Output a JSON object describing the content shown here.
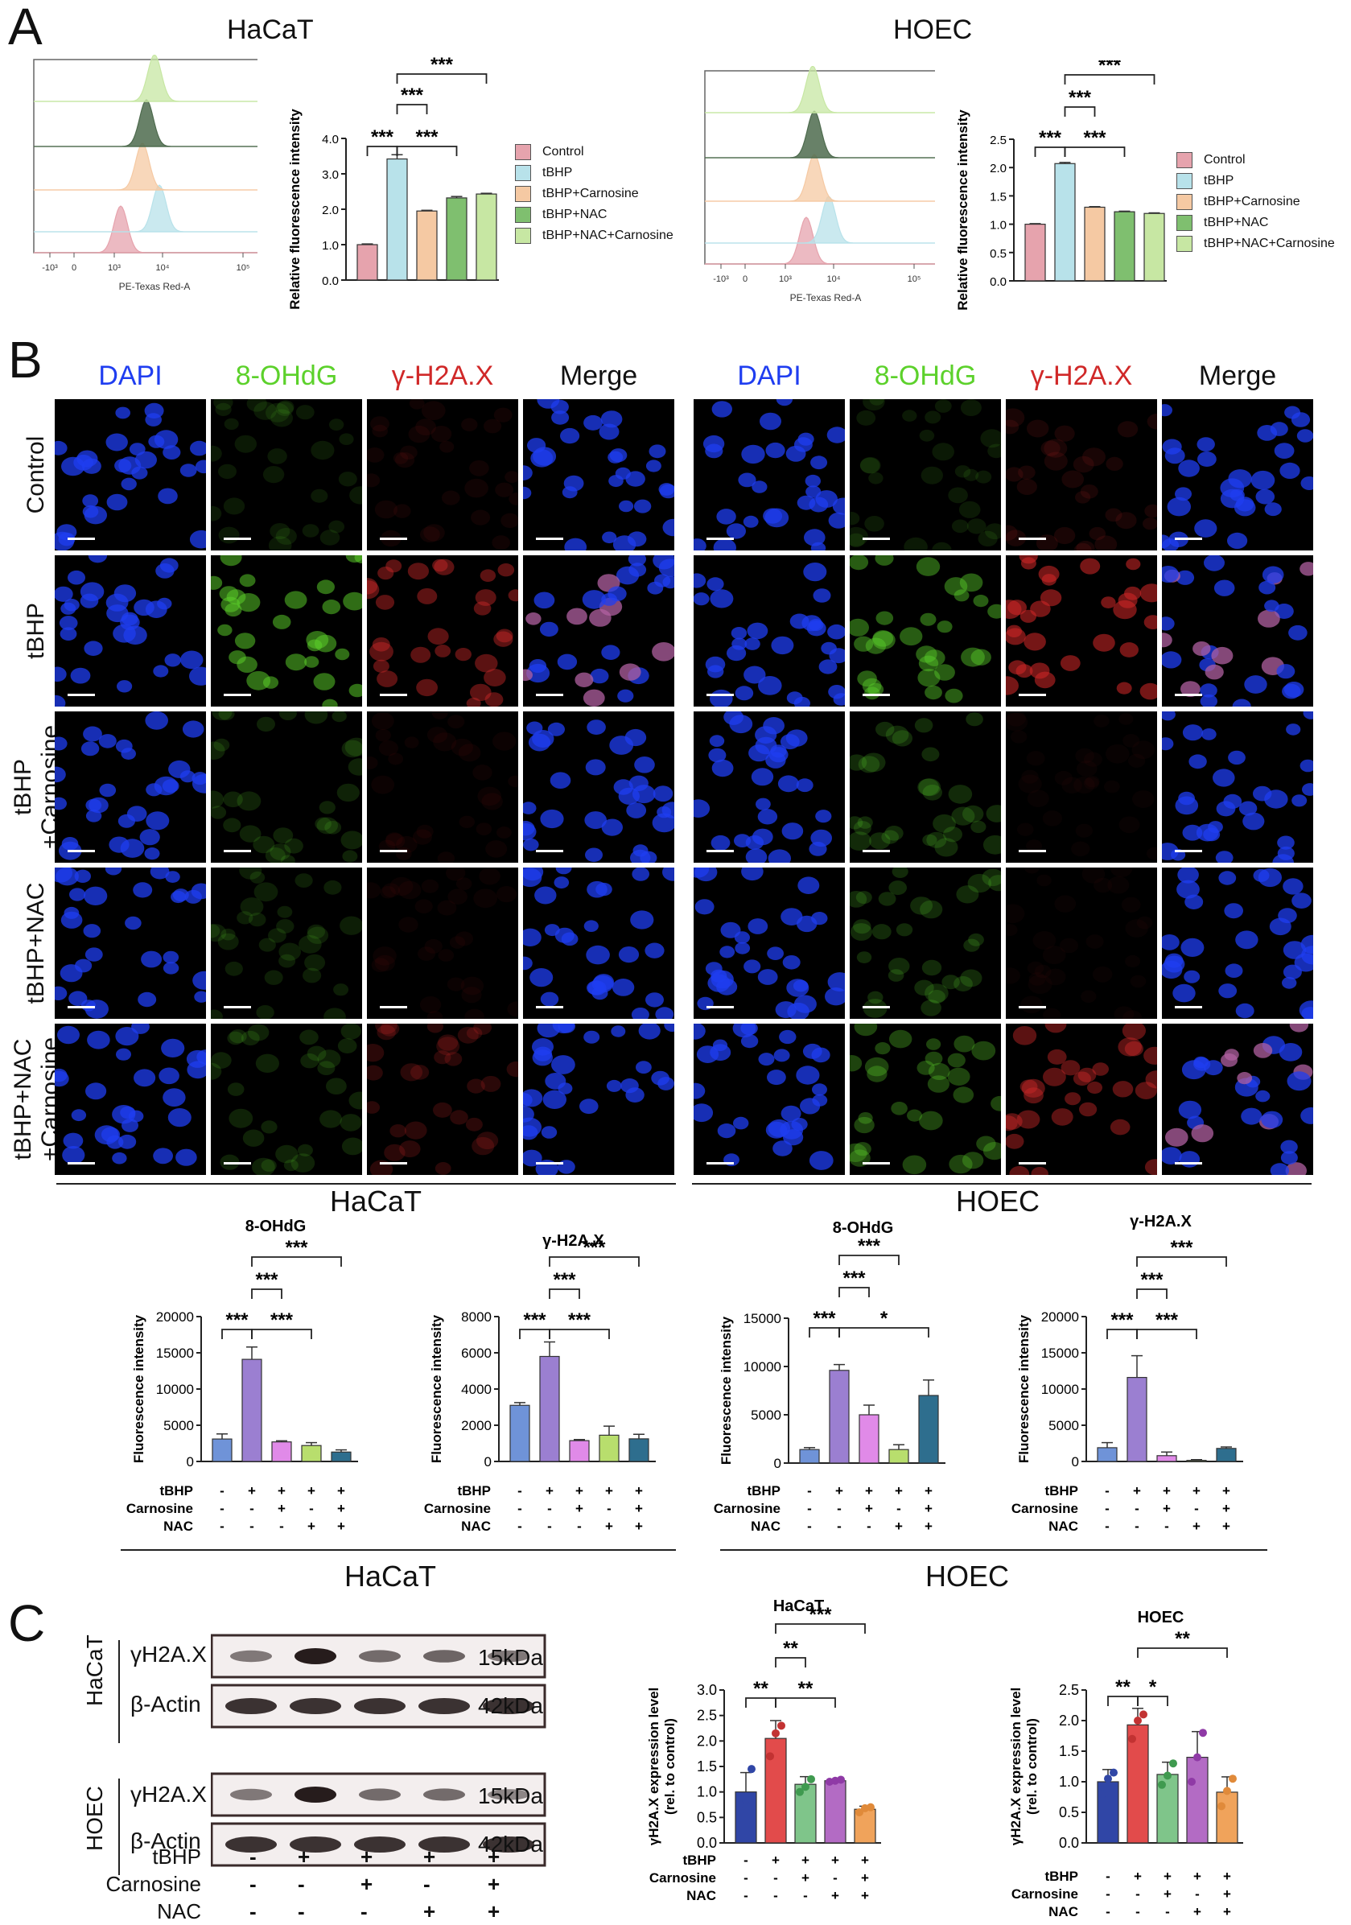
{
  "panels": {
    "a": "A",
    "b": "B",
    "c": "C"
  },
  "colors": {
    "control": "#e6a3ad",
    "tbhp": "#b8e2ea",
    "tbhp_carn": "#f5c9a3",
    "tbhp_nac": "#7fbf6f",
    "tbhp_nac_carn": "#c7e7a3",
    "b_control": "#6f93d8",
    "b_tbhp": "#9b7fd1",
    "b_carn": "#e08ae8",
    "b_nac": "#b8de6d",
    "b_combo": "#2e6e8e",
    "c_control": "#3046a6",
    "c_tbhp": "#e24b4b",
    "c_carn": "#7fc58a",
    "c_nac": "#b36bc4",
    "c_combo": "#f0a35b",
    "dapi": "#1f3df0",
    "ohdg": "#5cd12b",
    "h2ax": "#d02828"
  },
  "panelA": {
    "hacat_title": "HaCaT",
    "hoec_title": "HOEC",
    "flow_xlabel": "PE-Texas Red-A",
    "flow_ticks": [
      "-10³",
      "0",
      "10³",
      "10⁴",
      "10⁵"
    ],
    "legend": [
      "Control",
      "tBHP",
      "tBHP+Carnosine",
      "tBHP+NAC",
      "tBHP+NAC+Carnosine"
    ],
    "sig": "***"
  },
  "panelB": {
    "channels": [
      "DAPI",
      "8-OHdG",
      "γ-H2A.X",
      "Merge"
    ],
    "rows": [
      "Control",
      "tBHP",
      "tBHP\n+Carnosine",
      "tBHP+NAC",
      "tBHP+NAC\n+Carnosine"
    ],
    "hacat_label": "HaCaT",
    "hoec_label": "HOEC",
    "ylabel": "Fluorescence intensity",
    "tbhp_label": "tBHP",
    "carn_label": "Carnosine",
    "nac_label": "NAC",
    "plus": "+",
    "minus": "-"
  },
  "panelC": {
    "blot_labels": {
      "h2ax": "γH2A.X",
      "actin": "β-Actin",
      "hacat": "HaCaT",
      "hoec": "HOEC",
      "kda15": "15kDa",
      "kda42": "42kDa"
    },
    "ylabel": "γH2A.X expression level",
    "ylabel2": "(rel. to control)",
    "tbhp_label": "tBHP",
    "carn_label": "Carnosine",
    "nac_label": "NAC",
    "treat_signs": {
      "tbhp": [
        "-",
        "+",
        "+",
        "+",
        "+"
      ],
      "carnosine": [
        "-",
        "-",
        "+",
        "-",
        "+"
      ],
      "nac": [
        "-",
        "-",
        "-",
        "+",
        "+"
      ]
    }
  },
  "chart_data": [
    {
      "type": "bar",
      "title": "HaCaT",
      "xlabel": "",
      "ylabel": "Relative fluorescence intensity",
      "categories": [
        "Control",
        "tBHP",
        "tBHP+Carnosine",
        "tBHP+NAC",
        "tBHP+NAC+Carnosine"
      ],
      "values": [
        1.0,
        3.42,
        1.95,
        2.32,
        2.43
      ],
      "errors": [
        0.02,
        0.12,
        0.02,
        0.04,
        0.02
      ],
      "ylim": [
        0,
        4.0
      ],
      "yticks": [
        "0.0",
        "1.0",
        "2.0",
        "3.0",
        "4.0"
      ],
      "significance": [
        "***",
        "***",
        "***",
        "***"
      ]
    },
    {
      "type": "bar",
      "title": "HOEC",
      "xlabel": "",
      "ylabel": "Relative fluorescence intensity",
      "categories": [
        "Control",
        "tBHP",
        "tBHP+Carnosine",
        "tBHP+NAC",
        "tBHP+NAC+Carnosine"
      ],
      "values": [
        1.0,
        2.07,
        1.3,
        1.22,
        1.19
      ],
      "errors": [
        0.01,
        0.02,
        0.01,
        0.01,
        0.01
      ],
      "ylim": [
        0,
        2.5
      ],
      "yticks": [
        "0.0",
        "0.5",
        "1.0",
        "1.5",
        "2.0",
        "2.5"
      ],
      "significance": [
        "***",
        "***",
        "***",
        "***"
      ]
    },
    {
      "type": "bar",
      "title": "8-OHdG",
      "group": "HaCaT",
      "xlabel": "",
      "ylabel": "Fluorescence intensity",
      "categories": [
        "Control",
        "tBHP",
        "tBHP+Carnosine",
        "tBHP+NAC",
        "tBHP+NAC+Carnosine"
      ],
      "values": [
        3100,
        14100,
        2700,
        2200,
        1300
      ],
      "errors": [
        700,
        1700,
        150,
        400,
        300
      ],
      "ylim": [
        0,
        20000
      ],
      "yticks": [
        "0",
        "5000",
        "10000",
        "15000",
        "20000"
      ],
      "significance": [
        "***",
        "***",
        "***",
        "***"
      ]
    },
    {
      "type": "bar",
      "title": "γ-H2A.X",
      "group": "HaCaT",
      "xlabel": "",
      "ylabel": "Fluorescence intensity",
      "categories": [
        "Control",
        "tBHP",
        "tBHP+Carnosine",
        "tBHP+NAC",
        "tBHP+NAC+Carnosine"
      ],
      "values": [
        3100,
        5800,
        1150,
        1450,
        1250
      ],
      "errors": [
        150,
        800,
        60,
        500,
        250
      ],
      "ylim": [
        0,
        8000
      ],
      "yticks": [
        "0",
        "2000",
        "4000",
        "6000",
        "8000"
      ],
      "significance": [
        "***",
        "***",
        "***",
        "***"
      ]
    },
    {
      "type": "bar",
      "title": "8-OHdG",
      "group": "HOEC",
      "xlabel": "",
      "ylabel": "Fluorescence intensity",
      "categories": [
        "Control",
        "tBHP",
        "tBHP+Carnosine",
        "tBHP+NAC",
        "tBHP+NAC+Carnosine"
      ],
      "values": [
        1400,
        9600,
        5000,
        1400,
        7000
      ],
      "errors": [
        200,
        600,
        1000,
        500,
        1600
      ],
      "ylim": [
        0,
        15000
      ],
      "yticks": [
        "0",
        "5000",
        "10000",
        "15000"
      ],
      "significance": [
        "***",
        "***",
        "***",
        "*"
      ]
    },
    {
      "type": "bar",
      "title": "γ-H2A.X",
      "group": "HOEC",
      "xlabel": "",
      "ylabel": "Fluorescence intensity",
      "categories": [
        "Control",
        "tBHP",
        "tBHP+Carnosine",
        "tBHP+NAC",
        "tBHP+NAC+Carnosine"
      ],
      "values": [
        1900,
        11600,
        800,
        150,
        1800
      ],
      "errors": [
        700,
        3000,
        500,
        100,
        200
      ],
      "ylim": [
        0,
        20000
      ],
      "yticks": [
        "0",
        "5000",
        "10000",
        "15000",
        "20000"
      ],
      "significance": [
        "***",
        "***",
        "***",
        "***"
      ]
    },
    {
      "type": "bar",
      "title": "HaCaT",
      "xlabel": "",
      "ylabel": "γH2A.X expression level (rel. to control)",
      "categories": [
        "Control",
        "tBHP",
        "tBHP+Carnosine",
        "tBHP+NAC",
        "tBHP+NAC+Carnosine"
      ],
      "values": [
        1.0,
        2.05,
        1.15,
        1.22,
        0.66
      ],
      "errors": [
        0.38,
        0.35,
        0.15,
        0.02,
        0.06
      ],
      "points": [
        [
          0.75,
          0.85,
          1.45
        ],
        [
          1.7,
          2.15,
          2.3
        ],
        [
          1.0,
          1.1,
          1.25
        ],
        [
          1.2,
          1.22,
          1.24
        ],
        [
          0.6,
          0.68,
          0.7
        ]
      ],
      "ylim": [
        0,
        3.0
      ],
      "yticks": [
        "0.0",
        "0.5",
        "1.0",
        "1.5",
        "2.0",
        "2.5",
        "3.0"
      ],
      "significance": [
        "**",
        "**",
        "**",
        "***"
      ]
    },
    {
      "type": "bar",
      "title": "HOEC",
      "xlabel": "",
      "ylabel": "γH2A.X expression level (rel. to control)",
      "categories": [
        "Control",
        "tBHP",
        "tBHP+Carnosine",
        "tBHP+NAC",
        "tBHP+NAC+Carnosine"
      ],
      "values": [
        1.0,
        1.93,
        1.12,
        1.4,
        0.83
      ],
      "errors": [
        0.2,
        0.27,
        0.2,
        0.42,
        0.25
      ],
      "points": [
        [
          0.8,
          1.05,
          1.15
        ],
        [
          1.7,
          2.0,
          2.1
        ],
        [
          0.95,
          1.1,
          1.3
        ],
        [
          1.0,
          1.4,
          1.8
        ],
        [
          0.6,
          0.85,
          1.05
        ]
      ],
      "ylim": [
        0,
        2.5
      ],
      "yticks": [
        "0.0",
        "0.5",
        "1.0",
        "1.5",
        "2.0",
        "2.5"
      ],
      "significance": [
        "**",
        "*",
        "**"
      ]
    }
  ]
}
